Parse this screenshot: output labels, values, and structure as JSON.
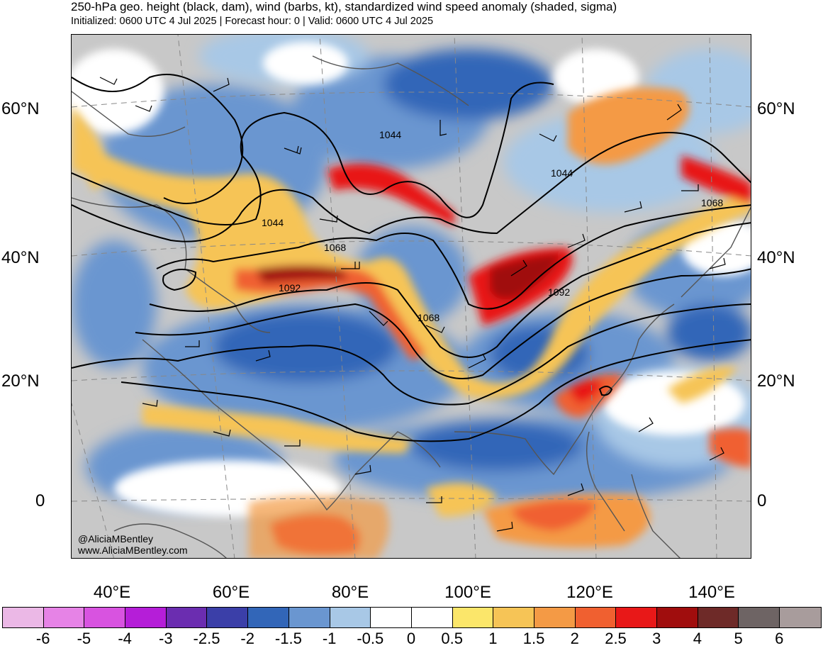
{
  "title": "250-hPa geo. height (black, dam), wind (barbs, kt), standardized wind speed anomaly (shaded, sigma)",
  "subtitle": "Initialized: 0600 UTC 4 Jul 2025 | Forecast hour: 0 | Valid: 0600 UTC 4 Jul 2025",
  "map": {
    "lat_labels": [
      "60°N",
      "40°N",
      "20°N",
      "0"
    ],
    "lon_labels": [
      "40°E",
      "60°E",
      "80°E",
      "100°E",
      "120°E",
      "140°E"
    ],
    "contour_labels": [
      "1044",
      "1044",
      "1044",
      "1068",
      "1068",
      "1068",
      "1092",
      "1092"
    ],
    "credit_handle": "@AliciaMBentley",
    "credit_url": "www.AliciaMBentley.com"
  },
  "colorbar": {
    "colors": [
      "#ebb8e6",
      "#e683e6",
      "#d853e0",
      "#b51ed8",
      "#6b2db0",
      "#3b3fa8",
      "#3266b8",
      "#6a96d0",
      "#a8c8e6",
      "#ffffff",
      "#ffffff",
      "#fbe66a",
      "#f6c456",
      "#f49a45",
      "#f06030",
      "#e81818",
      "#a00d0d",
      "#6e2a28",
      "#6e6464",
      "#a89c9c"
    ],
    "ticks": [
      "-6",
      "-5",
      "-4",
      "-3",
      "-2.5",
      "-2",
      "-1.5",
      "-1",
      "-0.5",
      "0",
      "0.5",
      "1",
      "1.5",
      "2",
      "2.5",
      "3",
      "4",
      "5",
      "6"
    ]
  }
}
